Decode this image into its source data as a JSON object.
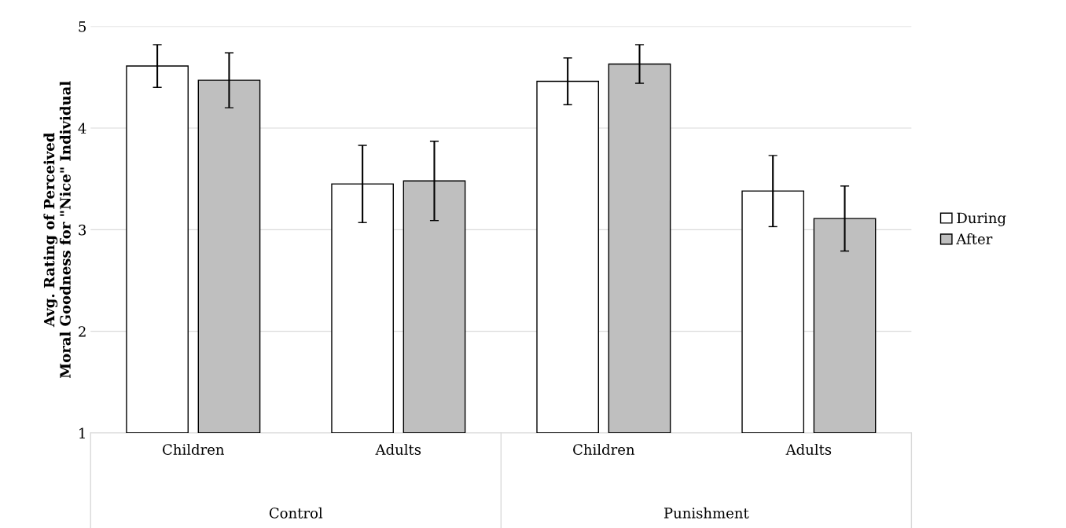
{
  "chart_data": {
    "type": "bar",
    "ylabel": "Avg. Rating of Perceived\nMoral Goodness for \"Nice\" Individual",
    "categories": [
      "Children",
      "Adults",
      "Children",
      "Adults"
    ],
    "series": [
      {
        "name": "During",
        "color": "#ffffff",
        "values": [
          4.61,
          3.45,
          4.46,
          3.38
        ],
        "errors": [
          0.21,
          0.38,
          0.23,
          0.35
        ]
      },
      {
        "name": "After",
        "color": "#bfbfbf",
        "values": [
          4.47,
          3.48,
          4.63,
          3.11
        ],
        "errors": [
          0.27,
          0.39,
          0.19,
          0.32
        ]
      }
    ],
    "annotations": [
      "Control",
      "Punishment"
    ],
    "ylim": [
      1,
      5
    ],
    "yticks": [
      1,
      2,
      3,
      4,
      5
    ],
    "grid": "y",
    "legend": "right"
  }
}
